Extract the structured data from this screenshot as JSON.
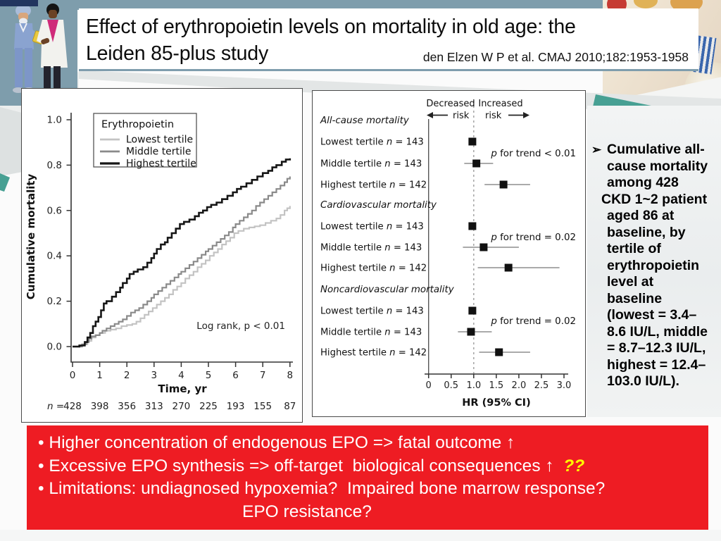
{
  "slide": {
    "title_line1": "Effect of erythropoietin levels on mortality in old age: the",
    "title_line2": "Leiden 85-plus study",
    "citation": "den Elzen W P et al. CMAJ 2010;182:1953-1958"
  },
  "side_note": {
    "bullet": "➢",
    "lines": [
      {
        "text": "Cumulative all-"
      },
      {
        "text": "cause mortality"
      },
      {
        "text": "among 428"
      },
      {
        "text": "CKD 1~2 patient",
        "small_indent": true
      },
      {
        "text": "aged 86 at"
      },
      {
        "text": "baseline, by"
      },
      {
        "text": "tertile of"
      },
      {
        "text": "erythropoietin"
      },
      {
        "text": "level at"
      },
      {
        "text": "baseline"
      },
      {
        "text": "(lowest = 3.4–"
      },
      {
        "text": "8.6 IU/L, middle"
      },
      {
        "text": "= 8.7–12.3 IU/L,"
      },
      {
        "text": "highest = 12.4–"
      },
      {
        "text": "103.0 IU/L)."
      }
    ]
  },
  "banner": {
    "background": "#ee1c23",
    "highlight_color": "#ffff00",
    "lines": [
      {
        "text": "• Higher concentration of endogenous EPO => fatal outcome ↑"
      },
      {
        "text": "• Excessive EPO synthesis => off-target  biological consequences ↑  ",
        "suffix": "??"
      },
      {
        "text": "• Limitations: undiagnosed hypoxemia?  Impaired bone marrow response?"
      },
      {
        "text": "EPO resistance?",
        "indent": true
      }
    ]
  },
  "chart_data": [
    {
      "type": "line",
      "subtype": "kaplan-meier-step",
      "ylabel": "Cumulative mortality",
      "xlabel": "Time, yr",
      "xlim": [
        0,
        8
      ],
      "ylim": [
        0.0,
        1.0
      ],
      "xticks": [
        "0",
        "1",
        "2",
        "3",
        "4",
        "5",
        "6",
        "7",
        "8"
      ],
      "yticks": [
        "0.0",
        "0.2",
        "0.4",
        "0.6",
        "0.8",
        "1.0"
      ],
      "grid": false,
      "legend_position": "upper-left-inside",
      "legend_title": "Erythropoietin",
      "annotation": "Log rank, p < 0.01",
      "n_label": "n =",
      "n_at_risk": [
        "428",
        "398",
        "356",
        "313",
        "270",
        "225",
        "193",
        "155",
        "87"
      ],
      "series": [
        {
          "name": "Lowest tertile",
          "color": "#c3c3c3",
          "width": 2.2,
          "points": [
            [
              0,
              0
            ],
            [
              0.35,
              0.01
            ],
            [
              0.55,
              0.025
            ],
            [
              0.7,
              0.04
            ],
            [
              0.85,
              0.05
            ],
            [
              1.0,
              0.06
            ],
            [
              1.2,
              0.07
            ],
            [
              1.4,
              0.075
            ],
            [
              1.6,
              0.08
            ],
            [
              1.8,
              0.09
            ],
            [
              2.0,
              0.095
            ],
            [
              2.2,
              0.1
            ],
            [
              2.35,
              0.11
            ],
            [
              2.5,
              0.125
            ],
            [
              2.65,
              0.14
            ],
            [
              2.8,
              0.155
            ],
            [
              2.95,
              0.17
            ],
            [
              3.1,
              0.185
            ],
            [
              3.25,
              0.2
            ],
            [
              3.4,
              0.215
            ],
            [
              3.55,
              0.23
            ],
            [
              3.7,
              0.25
            ],
            [
              3.85,
              0.265
            ],
            [
              4.0,
              0.28
            ],
            [
              4.15,
              0.3
            ],
            [
              4.3,
              0.315
            ],
            [
              4.45,
              0.33
            ],
            [
              4.6,
              0.35
            ],
            [
              4.75,
              0.365
            ],
            [
              4.9,
              0.38
            ],
            [
              5.05,
              0.4
            ],
            [
              5.2,
              0.415
            ],
            [
              5.35,
              0.43
            ],
            [
              5.5,
              0.45
            ],
            [
              5.65,
              0.465
            ],
            [
              5.8,
              0.48
            ],
            [
              5.95,
              0.5
            ],
            [
              6.1,
              0.51
            ],
            [
              6.3,
              0.52
            ],
            [
              6.5,
              0.525
            ],
            [
              6.7,
              0.53
            ],
            [
              6.9,
              0.535
            ],
            [
              7.1,
              0.545
            ],
            [
              7.3,
              0.555
            ],
            [
              7.5,
              0.565
            ],
            [
              7.65,
              0.58
            ],
            [
              7.8,
              0.6
            ],
            [
              7.9,
              0.61
            ],
            [
              8,
              0.62
            ]
          ]
        },
        {
          "name": "Middle tertile",
          "color": "#8a8a8a",
          "width": 2.2,
          "points": [
            [
              0,
              0
            ],
            [
              0.35,
              0.01
            ],
            [
              0.5,
              0.02
            ],
            [
              0.6,
              0.035
            ],
            [
              0.7,
              0.045
            ],
            [
              0.85,
              0.05
            ],
            [
              1.0,
              0.06
            ],
            [
              1.1,
              0.07
            ],
            [
              1.25,
              0.08
            ],
            [
              1.4,
              0.09
            ],
            [
              1.55,
              0.1
            ],
            [
              1.7,
              0.11
            ],
            [
              1.85,
              0.12
            ],
            [
              2.0,
              0.135
            ],
            [
              2.15,
              0.15
            ],
            [
              2.3,
              0.16
            ],
            [
              2.45,
              0.17
            ],
            [
              2.6,
              0.185
            ],
            [
              2.75,
              0.2
            ],
            [
              2.9,
              0.215
            ],
            [
              3.0,
              0.23
            ],
            [
              3.15,
              0.245
            ],
            [
              3.3,
              0.26
            ],
            [
              3.45,
              0.275
            ],
            [
              3.6,
              0.29
            ],
            [
              3.75,
              0.305
            ],
            [
              3.9,
              0.32
            ],
            [
              4.0,
              0.33
            ],
            [
              4.15,
              0.345
            ],
            [
              4.3,
              0.36
            ],
            [
              4.45,
              0.375
            ],
            [
              4.6,
              0.39
            ],
            [
              4.75,
              0.405
            ],
            [
              4.9,
              0.42
            ],
            [
              5.0,
              0.43
            ],
            [
              5.15,
              0.445
            ],
            [
              5.3,
              0.46
            ],
            [
              5.45,
              0.475
            ],
            [
              5.6,
              0.49
            ],
            [
              5.75,
              0.505
            ],
            [
              5.9,
              0.525
            ],
            [
              6.0,
              0.54
            ],
            [
              6.15,
              0.555
            ],
            [
              6.3,
              0.57
            ],
            [
              6.45,
              0.585
            ],
            [
              6.6,
              0.6
            ],
            [
              6.75,
              0.62
            ],
            [
              6.9,
              0.635
            ],
            [
              7.05,
              0.65
            ],
            [
              7.2,
              0.665
            ],
            [
              7.35,
              0.68
            ],
            [
              7.5,
              0.695
            ],
            [
              7.65,
              0.71
            ],
            [
              7.8,
              0.725
            ],
            [
              7.9,
              0.74
            ],
            [
              8,
              0.75
            ]
          ]
        },
        {
          "name": "Highest tertile",
          "color": "#161616",
          "width": 2.6,
          "points": [
            [
              0,
              0
            ],
            [
              0.25,
              0.005
            ],
            [
              0.45,
              0.02
            ],
            [
              0.55,
              0.04
            ],
            [
              0.65,
              0.06
            ],
            [
              0.75,
              0.09
            ],
            [
              0.85,
              0.11
            ],
            [
              0.95,
              0.13
            ],
            [
              1.05,
              0.16
            ],
            [
              1.15,
              0.19
            ],
            [
              1.25,
              0.2
            ],
            [
              1.45,
              0.22
            ],
            [
              1.6,
              0.24
            ],
            [
              1.75,
              0.26
            ],
            [
              1.85,
              0.28
            ],
            [
              2.0,
              0.3
            ],
            [
              2.1,
              0.32
            ],
            [
              2.25,
              0.33
            ],
            [
              2.4,
              0.34
            ],
            [
              2.6,
              0.35
            ],
            [
              2.75,
              0.37
            ],
            [
              2.9,
              0.39
            ],
            [
              3.0,
              0.41
            ],
            [
              3.1,
              0.43
            ],
            [
              3.25,
              0.45
            ],
            [
              3.4,
              0.46
            ],
            [
              3.5,
              0.48
            ],
            [
              3.65,
              0.5
            ],
            [
              3.8,
              0.52
            ],
            [
              3.95,
              0.54
            ],
            [
              4.1,
              0.55
            ],
            [
              4.3,
              0.56
            ],
            [
              4.5,
              0.575
            ],
            [
              4.65,
              0.59
            ],
            [
              4.8,
              0.6
            ],
            [
              4.95,
              0.615
            ],
            [
              5.1,
              0.625
            ],
            [
              5.3,
              0.635
            ],
            [
              5.5,
              0.65
            ],
            [
              5.7,
              0.665
            ],
            [
              5.9,
              0.68
            ],
            [
              6.05,
              0.695
            ],
            [
              6.2,
              0.705
            ],
            [
              6.4,
              0.72
            ],
            [
              6.6,
              0.735
            ],
            [
              6.8,
              0.75
            ],
            [
              7.0,
              0.765
            ],
            [
              7.2,
              0.775
            ],
            [
              7.35,
              0.79
            ],
            [
              7.5,
              0.8
            ],
            [
              7.7,
              0.815
            ],
            [
              7.85,
              0.825
            ],
            [
              8,
              0.83
            ]
          ]
        }
      ]
    },
    {
      "type": "forest",
      "xlabel": "HR (95% CI)",
      "xticks": [
        "0",
        "0.5",
        "1.0",
        "1.5",
        "2.0",
        "2.5",
        "3.0"
      ],
      "xtick_values": [
        0,
        0.5,
        1.0,
        1.5,
        2.0,
        2.5,
        3.0
      ],
      "reference_line": 1.0,
      "header": {
        "left_word": "Decreased",
        "left_word2": "risk",
        "right_word": "Increased",
        "right_word2": "risk"
      },
      "sections": [
        {
          "title": "All-cause mortality",
          "p_trend": "p for trend < 0.01",
          "rows": [
            {
              "label": "Lowest tertile",
              "n": "143",
              "hr": 0.97,
              "ci": null
            },
            {
              "label": "Middle tertile",
              "n": "143",
              "hr": 1.06,
              "ci": [
                0.79,
                1.43
              ]
            },
            {
              "label": "Highest tertile",
              "n": "142",
              "hr": 1.66,
              "ci": [
                1.24,
                2.25
              ]
            }
          ]
        },
        {
          "title": "Cardiovascular mortality",
          "p_trend": "p for trend = 0.02",
          "rows": [
            {
              "label": "Lowest tertile",
              "n": "143",
              "hr": 0.97,
              "ci": null
            },
            {
              "label": "Middle tertile",
              "n": "143",
              "hr": 1.22,
              "ci": [
                0.76,
                2.0
              ]
            },
            {
              "label": "Highest tertile",
              "n": "142",
              "hr": 1.77,
              "ci": [
                1.09,
                2.9
              ]
            }
          ]
        },
        {
          "title": "Noncardiovascular mortality",
          "p_trend": "p for trend = 0.02",
          "rows": [
            {
              "label": "Lowest tertile",
              "n": "143",
              "hr": 0.97,
              "ci": null
            },
            {
              "label": "Middle tertile",
              "n": "143",
              "hr": 0.94,
              "ci": [
                0.65,
                1.4
              ]
            },
            {
              "label": "Highest tertile",
              "n": "142",
              "hr": 1.56,
              "ci": [
                1.12,
                2.25
              ]
            }
          ]
        }
      ]
    }
  ],
  "colors": {
    "teal_band": "#47a093",
    "teal_band_dark": "#3f9488",
    "top_strip": "#7e9dac",
    "navy_corner": "#22355f",
    "banner_red": "#ee1c23"
  }
}
